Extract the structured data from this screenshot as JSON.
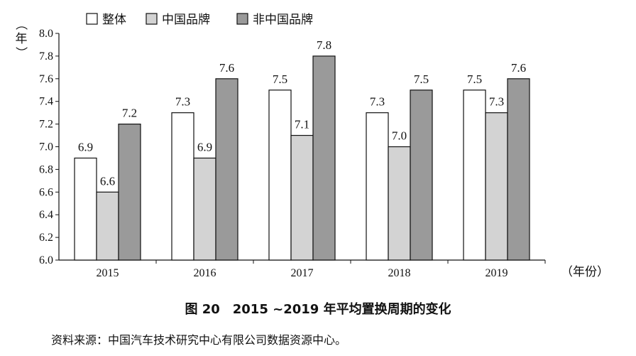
{
  "chart_data": {
    "type": "bar",
    "title": "图 20　2015 ~2019 年平均置换周期的变化",
    "ylabel": "（年）",
    "xlabel": "（年份）",
    "ylim": [
      6.0,
      8.0
    ],
    "yticks": [
      "6.0",
      "6.2",
      "6.4",
      "6.6",
      "6.8",
      "7.0",
      "7.2",
      "7.4",
      "7.6",
      "7.8",
      "8.0"
    ],
    "categories": [
      "2015",
      "2016",
      "2017",
      "2018",
      "2019"
    ],
    "series": [
      {
        "name": "整体",
        "values": [
          6.9,
          7.3,
          7.5,
          7.3,
          7.5
        ],
        "labels": [
          "6.9",
          "7.3",
          "7.5",
          "7.3",
          "7.5"
        ],
        "color": "#ffffff"
      },
      {
        "name": "中国品牌",
        "values": [
          6.6,
          6.9,
          7.1,
          7.0,
          7.3
        ],
        "labels": [
          "6.6",
          "6.9",
          "7.1",
          "7.0",
          "7.3"
        ],
        "color": "#d3d3d3"
      },
      {
        "name": "非中国品牌",
        "values": [
          7.2,
          7.6,
          7.8,
          7.5,
          7.6
        ],
        "labels": [
          "7.2",
          "7.6",
          "7.8",
          "7.5",
          "7.6"
        ],
        "color": "#9a9a9a"
      }
    ],
    "legend_position": "top-left",
    "grid": false
  },
  "source": "资料来源：中国汽车技术研究中心有限公司数据资源中心。"
}
